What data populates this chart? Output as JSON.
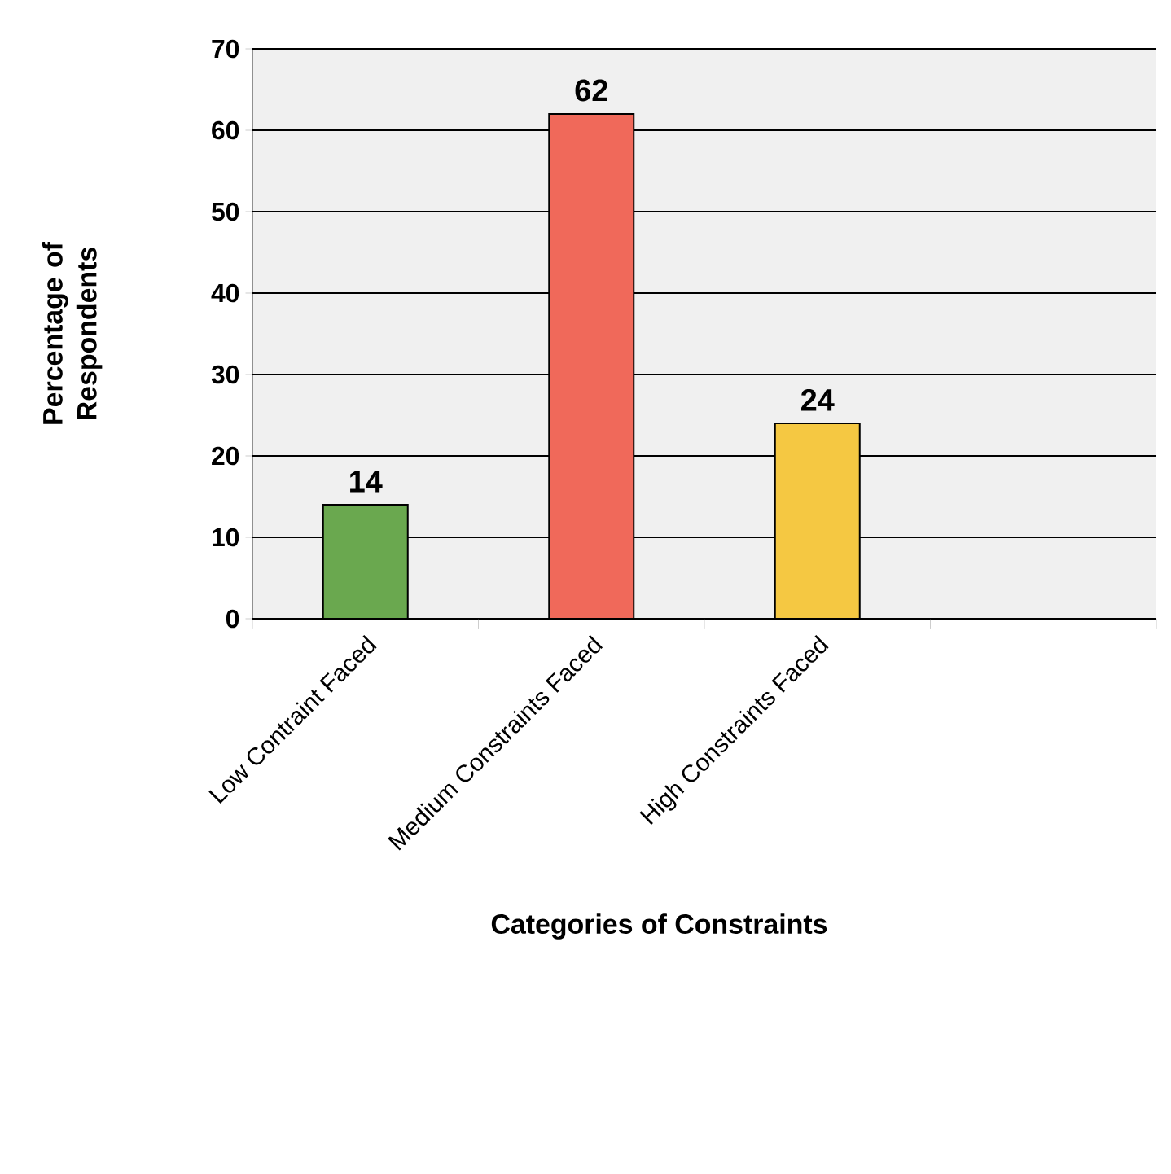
{
  "chart_data": {
    "type": "bar",
    "xlabel": "Categories of Constraints",
    "ylabel": "Percentage of Respondents",
    "categories": [
      "Low Contraint Faced",
      "Medium Constraints Faced",
      "High Constraints Faced",
      null
    ],
    "values": [
      14,
      62,
      24,
      null
    ],
    "colors": [
      "#6aa84f",
      "#f0695a",
      "#f5c842",
      "#cccccc"
    ],
    "ylim": [
      0,
      70
    ],
    "yticks": [
      0,
      10,
      20,
      30,
      40,
      50,
      60,
      70
    ],
    "grid": "y",
    "data_labels": true
  }
}
